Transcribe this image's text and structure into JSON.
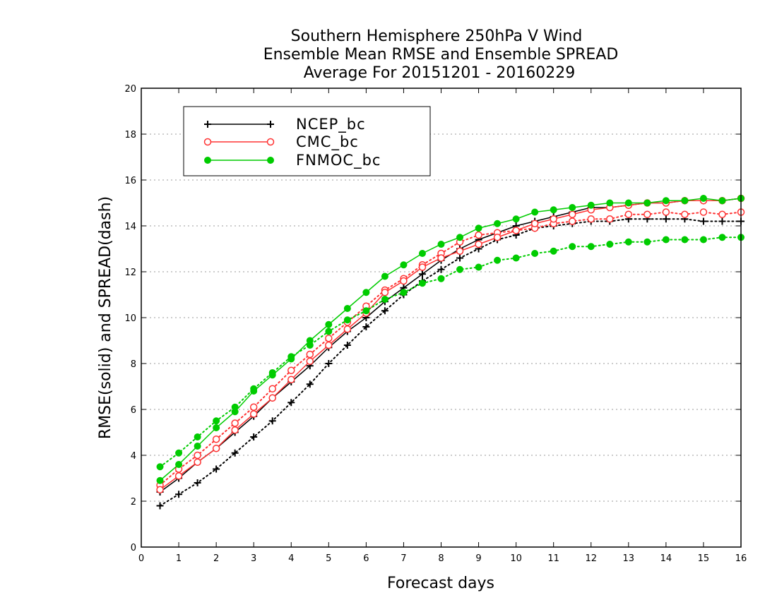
{
  "chart_data": {
    "type": "line",
    "title": [
      "Southern Hemisphere 250hPa V Wind",
      "Ensemble Mean RMSE and Ensemble SPREAD",
      "Average For 20151201 - 20160229"
    ],
    "xlabel": "Forecast days",
    "ylabel": "RMSE(solid) and SPREAD(dash)",
    "xlim": [
      0,
      16
    ],
    "ylim": [
      0,
      20
    ],
    "xticks": [
      "0",
      "1",
      "2",
      "3",
      "4",
      "5",
      "6",
      "7",
      "8",
      "9",
      "10",
      "11",
      "12",
      "13",
      "14",
      "15",
      "16"
    ],
    "yticks": [
      "0",
      "2",
      "4",
      "6",
      "8",
      "10",
      "12",
      "14",
      "16",
      "18",
      "20"
    ],
    "grid": true,
    "legend_position": "top-left",
    "x": [
      0.5,
      1,
      1.5,
      2,
      2.5,
      3,
      3.5,
      4,
      4.5,
      5,
      5.5,
      6,
      6.5,
      7,
      7.5,
      8,
      8.5,
      9,
      9.5,
      10,
      10.5,
      11,
      11.5,
      12,
      12.5,
      13,
      13.5,
      14,
      14.5,
      15,
      15.5,
      16
    ],
    "series": [
      {
        "name": "NCEP_bc",
        "color": "#000000",
        "marker": "plus",
        "rmse": [
          2.4,
          3.0,
          3.7,
          4.3,
          5.0,
          5.7,
          6.5,
          7.2,
          7.9,
          8.7,
          9.4,
          10.0,
          10.7,
          11.3,
          11.9,
          12.5,
          13.0,
          13.4,
          13.7,
          14.0,
          14.2,
          14.4,
          14.6,
          14.8,
          14.8,
          14.9,
          15.0,
          15.0,
          15.1,
          15.1,
          15.1,
          15.2
        ],
        "spread": [
          1.8,
          2.3,
          2.8,
          3.4,
          4.1,
          4.8,
          5.5,
          6.3,
          7.1,
          8.0,
          8.8,
          9.6,
          10.3,
          11.0,
          11.6,
          12.1,
          12.6,
          13.0,
          13.4,
          13.6,
          13.9,
          14.0,
          14.1,
          14.2,
          14.2,
          14.3,
          14.3,
          14.3,
          14.3,
          14.2,
          14.2,
          14.2
        ]
      },
      {
        "name": "CMC_bc",
        "color": "#ff3333",
        "marker": "open-circle",
        "rmse": [
          2.5,
          3.1,
          3.7,
          4.3,
          5.1,
          5.8,
          6.5,
          7.3,
          8.1,
          8.8,
          9.5,
          10.2,
          11.1,
          11.6,
          12.2,
          12.6,
          12.9,
          13.2,
          13.5,
          13.8,
          14.1,
          14.3,
          14.5,
          14.7,
          14.8,
          14.9,
          15.0,
          15.0,
          15.1,
          15.1,
          15.1,
          15.2
        ],
        "spread": [
          2.7,
          3.4,
          4.0,
          4.7,
          5.4,
          6.1,
          6.9,
          7.7,
          8.4,
          9.1,
          9.8,
          10.5,
          11.2,
          11.7,
          12.3,
          12.8,
          13.3,
          13.6,
          13.7,
          13.8,
          13.9,
          14.1,
          14.2,
          14.3,
          14.3,
          14.5,
          14.5,
          14.6,
          14.5,
          14.6,
          14.5,
          14.6
        ]
      },
      {
        "name": "FNMOC_bc",
        "color": "#00cc00",
        "marker": "filled-circle",
        "rmse": [
          2.9,
          3.6,
          4.4,
          5.2,
          5.9,
          6.8,
          7.5,
          8.2,
          9.0,
          9.7,
          10.4,
          11.1,
          11.8,
          12.3,
          12.8,
          13.2,
          13.5,
          13.9,
          14.1,
          14.3,
          14.6,
          14.7,
          14.8,
          14.9,
          15.0,
          15.0,
          15.0,
          15.1,
          15.1,
          15.2,
          15.1,
          15.2
        ],
        "spread": [
          3.5,
          4.1,
          4.8,
          5.5,
          6.1,
          6.9,
          7.6,
          8.3,
          8.8,
          9.4,
          9.9,
          10.3,
          10.8,
          11.1,
          11.5,
          11.7,
          12.1,
          12.2,
          12.5,
          12.6,
          12.8,
          12.9,
          13.1,
          13.1,
          13.2,
          13.3,
          13.3,
          13.4,
          13.4,
          13.4,
          13.5,
          13.5
        ]
      }
    ]
  }
}
